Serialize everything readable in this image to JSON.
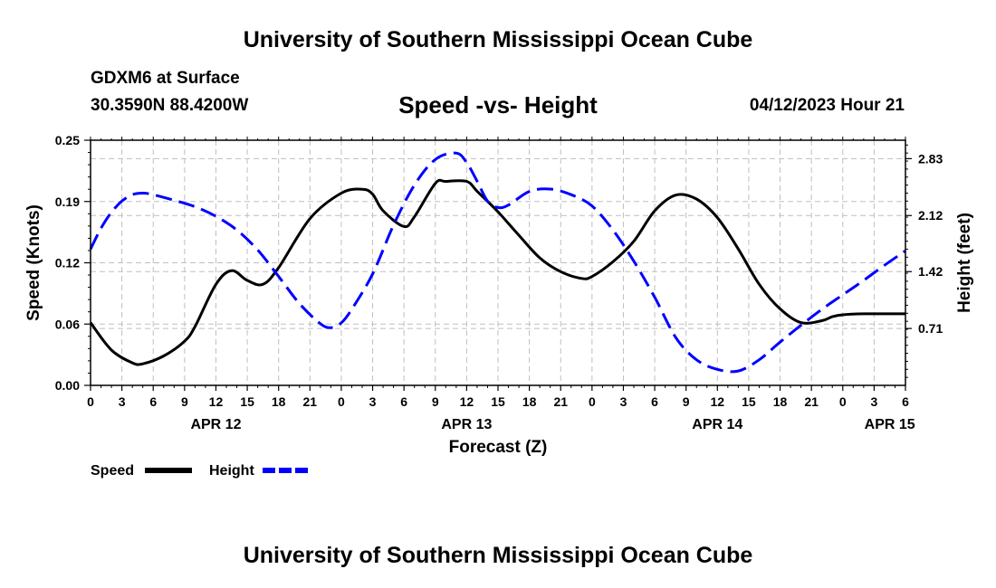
{
  "header": {
    "title": "University of Southern Mississippi Ocean Cube",
    "station": "GDXM6 at Surface",
    "coords": "30.3590N   88.4200W",
    "subtitle": "Speed -vs- Height",
    "datetime": "04/12/2023 Hour 21"
  },
  "footer": {
    "title": "University of Southern Mississippi Ocean Cube"
  },
  "chart_data": {
    "type": "line",
    "title": "Speed -vs- Height",
    "xlabel": "Forecast (Z)",
    "ylabel_left": "Speed (Knots)",
    "ylabel_right": "Height (feet)",
    "x_range": [
      0,
      78
    ],
    "x_unit": "hours from APR 12 00Z",
    "x_tick_labels": [
      "0",
      "3",
      "6",
      "9",
      "12",
      "15",
      "18",
      "21",
      "0",
      "3",
      "6",
      "9",
      "12",
      "15",
      "18",
      "21",
      "0",
      "3",
      "6",
      "9",
      "12",
      "15",
      "18",
      "21",
      "0",
      "3",
      "6"
    ],
    "date_labels": [
      {
        "label": "APR 12",
        "hour": 12
      },
      {
        "label": "APR 13",
        "hour": 36
      },
      {
        "label": "APR 14",
        "hour": 60
      },
      {
        "label": "APR 15",
        "hour": 76.5
      }
    ],
    "y_left": {
      "range": [
        0,
        0.25
      ],
      "ticks": [
        "0.00",
        "0.06",
        "0.12",
        "0.19",
        "0.25"
      ],
      "tick_values": [
        0,
        0.0625,
        0.125,
        0.1875,
        0.25
      ]
    },
    "y_right": {
      "range": [
        0,
        3.06
      ],
      "ticks": [
        "0.71",
        "1.42",
        "2.12",
        "2.83"
      ],
      "tick_values": [
        0.71,
        1.42,
        2.12,
        2.83
      ]
    },
    "grid": true,
    "series": [
      {
        "name": "Speed",
        "axis": "left",
        "color": "#000000",
        "style": "solid",
        "x": [
          0,
          2,
          4,
          5,
          7,
          9,
          10,
          12,
          13.5,
          15,
          16.5,
          18,
          21,
          24,
          26,
          27,
          28,
          30,
          31,
          33,
          34,
          36,
          37,
          39,
          41,
          43,
          45,
          47,
          48,
          50,
          52,
          54,
          56,
          58,
          60,
          62,
          64,
          66,
          68,
          70,
          71,
          72,
          74,
          76,
          78
        ],
        "values": [
          0.064,
          0.036,
          0.023,
          0.022,
          0.03,
          0.045,
          0.06,
          0.103,
          0.117,
          0.107,
          0.103,
          0.12,
          0.17,
          0.196,
          0.2,
          0.195,
          0.178,
          0.162,
          0.172,
          0.206,
          0.208,
          0.208,
          0.198,
          0.177,
          0.153,
          0.13,
          0.116,
          0.109,
          0.111,
          0.126,
          0.147,
          0.178,
          0.194,
          0.19,
          0.171,
          0.139,
          0.103,
          0.078,
          0.064,
          0.066,
          0.07,
          0.072,
          0.073,
          0.073,
          0.073
        ]
      },
      {
        "name": "Height",
        "axis": "right",
        "color": "#0000ff",
        "style": "dashed",
        "x": [
          0,
          1,
          2,
          3,
          4,
          5,
          6,
          8,
          10,
          12,
          14,
          16,
          18,
          20,
          22,
          23,
          24,
          25,
          27,
          29,
          31,
          33,
          35,
          36,
          37,
          38,
          39,
          40,
          42,
          44,
          46,
          48,
          50,
          52,
          54,
          56,
          58,
          60,
          62,
          64,
          66,
          68,
          70,
          72,
          74,
          76,
          78
        ],
        "values": [
          1.7,
          1.96,
          2.16,
          2.3,
          2.38,
          2.4,
          2.38,
          2.31,
          2.23,
          2.11,
          1.94,
          1.69,
          1.36,
          1.02,
          0.77,
          0.72,
          0.78,
          0.95,
          1.39,
          2.0,
          2.5,
          2.82,
          2.9,
          2.78,
          2.55,
          2.3,
          2.22,
          2.25,
          2.42,
          2.45,
          2.38,
          2.24,
          1.94,
          1.55,
          1.1,
          0.6,
          0.32,
          0.2,
          0.18,
          0.32,
          0.54,
          0.75,
          0.95,
          1.13,
          1.31,
          1.5,
          1.68
        ]
      }
    ],
    "legend": [
      {
        "label": "Speed",
        "color": "#000000",
        "style": "solid"
      },
      {
        "label": "Height",
        "color": "#0000ff",
        "style": "dashed"
      }
    ],
    "legend_position": "bottom-left"
  }
}
